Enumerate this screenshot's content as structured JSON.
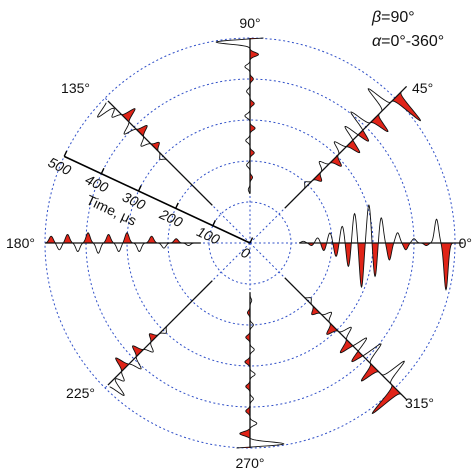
{
  "chart_data": {
    "type": "polar-waveform",
    "title": "",
    "params": [
      {
        "symbol": "β",
        "value": "=90°"
      },
      {
        "symbol": "α",
        "value": "=0°-360°"
      }
    ],
    "radial_axis": {
      "label": "Time, μs",
      "ticks": [
        0,
        100,
        200,
        300,
        400,
        500
      ],
      "tick_labels": [
        "0",
        "100",
        "200",
        "300",
        "400",
        "500"
      ],
      "range": [
        0,
        500
      ],
      "label_direction_deg": 155
    },
    "angular_axis": {
      "ticks_deg": [
        0,
        45,
        90,
        135,
        180,
        225,
        270,
        315
      ],
      "tick_labels": [
        "0°",
        "45°",
        "90°",
        "135°",
        "180°",
        "225°",
        "270°",
        "315°"
      ]
    },
    "grid": {
      "circles_us": [
        100,
        200,
        300,
        400,
        500
      ],
      "style": "dotted",
      "color": "#3050c8"
    },
    "series_color": "#e02418",
    "waveforms": [
      {
        "angle_deg": 0,
        "start_us": 120,
        "end_us": 520,
        "pulses": [
          [
            130,
            -2
          ],
          [
            150,
            3
          ],
          [
            165,
            -6
          ],
          [
            180,
            9
          ],
          [
            195,
            -12
          ],
          [
            210,
            16
          ],
          [
            225,
            -20
          ],
          [
            240,
            28
          ],
          [
            255,
            -35
          ],
          [
            272,
            52
          ],
          [
            290,
            -45
          ],
          [
            305,
            40
          ],
          [
            320,
            -30
          ],
          [
            340,
            20
          ],
          [
            360,
            -12
          ],
          [
            380,
            8
          ],
          [
            400,
            -5
          ],
          [
            430,
            3
          ]
        ],
        "big": [
          [
            455,
            -28
          ],
          [
            478,
            55
          ]
        ]
      },
      {
        "angle_deg": 45,
        "start_us": 120,
        "end_us": 540,
        "pulses": [
          [
            200,
            -5
          ],
          [
            230,
            8
          ],
          [
            260,
            -10
          ],
          [
            290,
            12
          ],
          [
            320,
            -14
          ],
          [
            345,
            16
          ],
          [
            365,
            -18
          ],
          [
            380,
            14
          ]
        ],
        "big": [
          [
            400,
            -25
          ],
          [
            430,
            22
          ],
          [
            470,
            -30
          ],
          [
            505,
            40
          ]
        ]
      },
      {
        "angle_deg": 90,
        "start_us": 120,
        "end_us": 500,
        "pulses": [
          [
            130,
            -2
          ],
          [
            160,
            3
          ],
          [
            190,
            -4
          ],
          [
            220,
            5
          ],
          [
            250,
            -5
          ],
          [
            280,
            6
          ],
          [
            310,
            -6
          ],
          [
            340,
            5
          ],
          [
            370,
            -4
          ],
          [
            400,
            4
          ],
          [
            430,
            -6
          ],
          [
            460,
            10
          ]
        ],
        "big": [
          [
            490,
            -40
          ],
          [
            505,
            35
          ]
        ]
      },
      {
        "angle_deg": 135,
        "start_us": 130,
        "end_us": 490,
        "pulses": [
          [
            300,
            -5
          ],
          [
            330,
            8
          ],
          [
            355,
            -10
          ],
          [
            380,
            12
          ],
          [
            405,
            -14
          ],
          [
            430,
            16
          ],
          [
            455,
            -10
          ]
        ],
        "big": [
          [
            480,
            -22
          ]
        ]
      },
      {
        "angle_deg": 180,
        "start_us": 120,
        "end_us": 500,
        "pulses": [
          [
            150,
            -3
          ],
          [
            180,
            5
          ],
          [
            210,
            -6
          ],
          [
            240,
            8
          ],
          [
            270,
            -10
          ],
          [
            300,
            12
          ],
          [
            320,
            -10
          ],
          [
            345,
            10
          ],
          [
            370,
            -12
          ],
          [
            395,
            12
          ],
          [
            420,
            -10
          ],
          [
            445,
            10
          ],
          [
            465,
            -8
          ],
          [
            485,
            8
          ]
        ],
        "big": []
      },
      {
        "angle_deg": 225,
        "start_us": 130,
        "end_us": 490,
        "pulses": [
          [
            300,
            -5
          ],
          [
            330,
            8
          ],
          [
            355,
            -10
          ],
          [
            380,
            12
          ],
          [
            405,
            -14
          ],
          [
            430,
            16
          ],
          [
            455,
            -10
          ]
        ],
        "big": [
          [
            480,
            -22
          ]
        ]
      },
      {
        "angle_deg": 270,
        "start_us": 120,
        "end_us": 500,
        "pulses": [
          [
            140,
            -2
          ],
          [
            170,
            3
          ],
          [
            200,
            -4
          ],
          [
            230,
            5
          ],
          [
            260,
            -5
          ],
          [
            290,
            6
          ],
          [
            320,
            -6
          ],
          [
            350,
            5
          ],
          [
            380,
            -4
          ],
          [
            410,
            5
          ],
          [
            440,
            -8
          ],
          [
            465,
            12
          ]
        ],
        "big": [
          [
            490,
            -40
          ],
          [
            505,
            35
          ]
        ]
      },
      {
        "angle_deg": 315,
        "start_us": 120,
        "end_us": 540,
        "pulses": [
          [
            200,
            -5
          ],
          [
            230,
            8
          ],
          [
            260,
            -10
          ],
          [
            290,
            12
          ],
          [
            320,
            -14
          ],
          [
            345,
            16
          ],
          [
            365,
            -18
          ],
          [
            380,
            14
          ]
        ],
        "big": [
          [
            400,
            -25
          ],
          [
            430,
            22
          ],
          [
            470,
            -30
          ],
          [
            505,
            40
          ]
        ]
      }
    ]
  }
}
